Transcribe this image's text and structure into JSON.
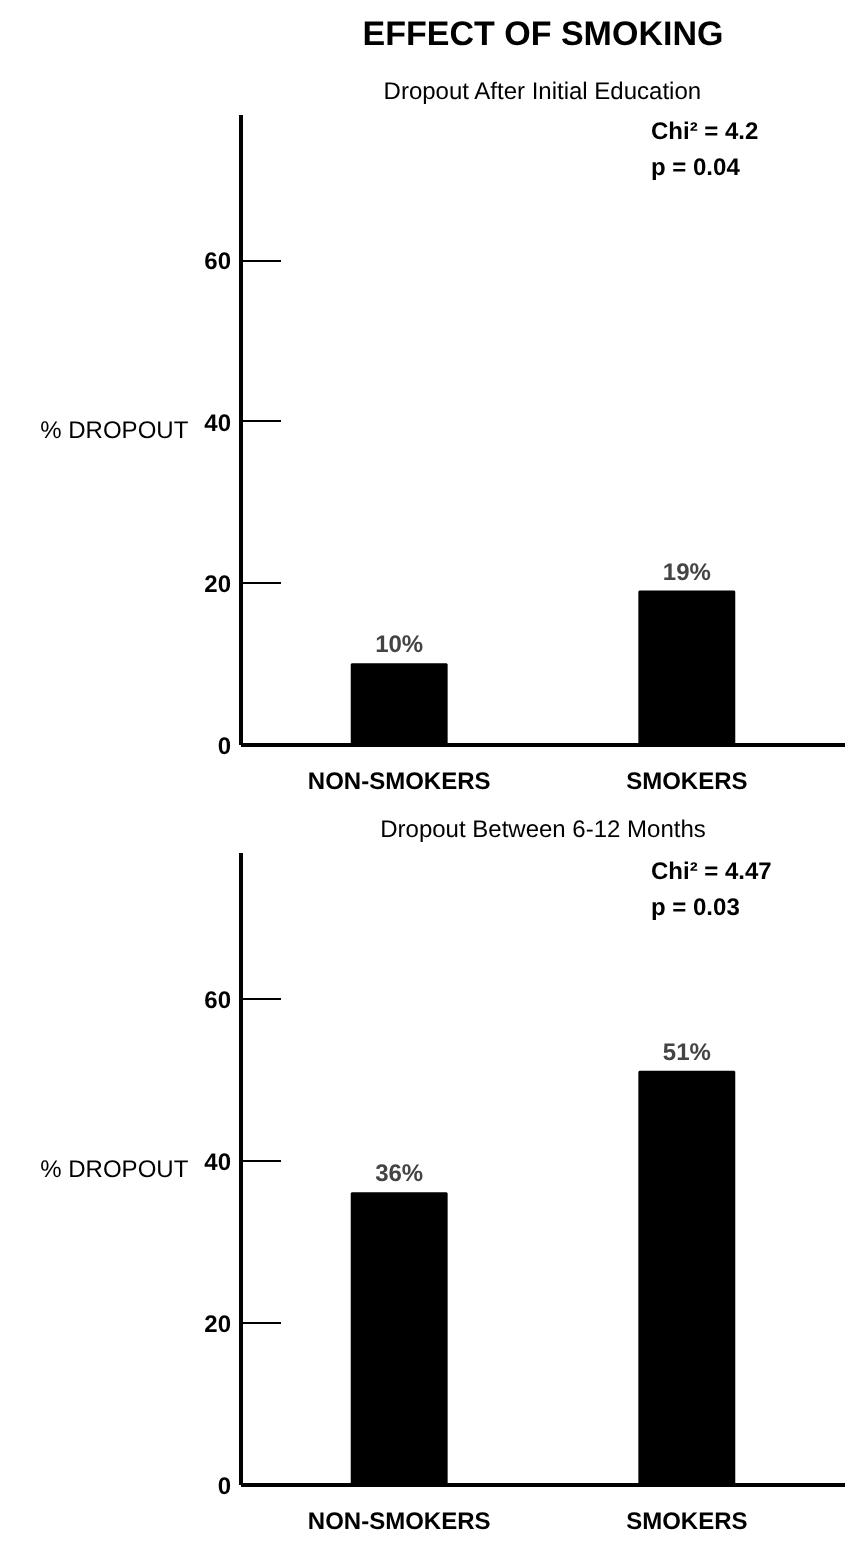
{
  "chart_data": [
    {
      "type": "bar",
      "title": "EFFECT OF SMOKING",
      "subtitle": "Dropout After Initial Education",
      "ylabel": "% DROPOUT",
      "categories": [
        "NON-SMOKERS",
        "SMOKERS"
      ],
      "values": [
        10,
        19
      ],
      "value_labels": [
        "10%",
        "19%"
      ],
      "color": "#000000",
      "ylim": [
        0,
        78
      ],
      "yticks": [
        0,
        20,
        40,
        60
      ],
      "grid": false,
      "annotations": [
        "Chi² = 4.2",
        "p = 0.04"
      ]
    },
    {
      "type": "bar",
      "subtitle": "Dropout Between 6-12 Months",
      "ylabel": "% DROPOUT",
      "categories": [
        "NON-SMOKERS",
        "SMOKERS"
      ],
      "values": [
        36,
        51
      ],
      "value_labels": [
        "36%",
        "51%"
      ],
      "color": "#000000",
      "ylim": [
        0,
        78
      ],
      "yticks": [
        0,
        20,
        40,
        60
      ],
      "grid": false,
      "annotations": [
        "Chi² = 4.47",
        "p = 0.03"
      ]
    }
  ]
}
